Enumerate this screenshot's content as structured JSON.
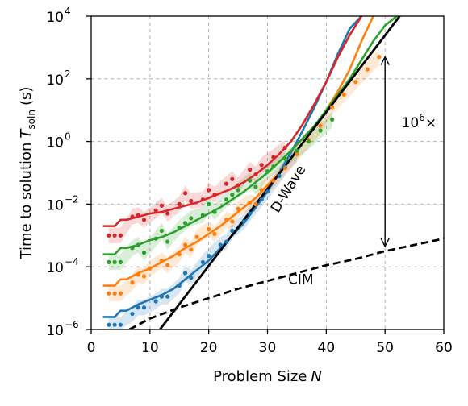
{
  "chart_data": {
    "type": "line",
    "xlabel": "Problem Size",
    "xlabel_var": "N",
    "ylabel": "Time to solution",
    "ylabel_var": "T",
    "ylabel_sub": "soln",
    "ylabel_unit": "(s)",
    "xlim": [
      0,
      60
    ],
    "ylim_log10": [
      -6,
      4
    ],
    "y_scale": "log",
    "grid": true,
    "x_ticks": [
      0,
      10,
      20,
      30,
      40,
      50,
      60
    ],
    "x_tick_labels": [
      "0",
      "10",
      "20",
      "30",
      "40",
      "50",
      "60"
    ],
    "y_tick_exponents": [
      -6,
      -4,
      -2,
      0,
      2,
      4
    ],
    "y_tick_labels": [
      "10",
      "10",
      "10",
      "10",
      "10",
      "10"
    ],
    "y_tick_superscripts": [
      "−6",
      "−4",
      "−2",
      "0",
      "2",
      "4"
    ],
    "annotations": {
      "dwave": "D-Wave",
      "cim": "CIM",
      "factor_base": "10",
      "factor_exp": "6",
      "factor_suffix": "×"
    },
    "series": [
      {
        "color": "#1f77b4",
        "kind": "model",
        "x": [
          2,
          4,
          5,
          6,
          8,
          10,
          12,
          14,
          16,
          18,
          20,
          22,
          24,
          26,
          28,
          30,
          32,
          34,
          36,
          38,
          40,
          42,
          44,
          46
        ],
        "log10_y": [
          -5.6,
          -5.6,
          -5.4,
          -5.4,
          -5.2,
          -5.05,
          -4.9,
          -4.7,
          -4.4,
          -4.1,
          -3.8,
          -3.4,
          -3.0,
          -2.6,
          -2.1,
          -1.6,
          -1.0,
          -0.35,
          0.35,
          1.1,
          1.9,
          2.8,
          3.6,
          4.0
        ],
        "points_x": [
          3,
          4,
          5,
          7,
          8,
          9,
          11,
          12,
          13,
          15,
          16,
          17,
          19,
          20,
          22,
          23,
          24,
          26,
          27,
          29,
          30,
          32,
          33,
          35
        ],
        "points_log10_y": [
          -5.85,
          -5.85,
          -5.85,
          -5.5,
          -5.3,
          -5.3,
          -5.1,
          -4.95,
          -4.95,
          -4.6,
          -4.2,
          -4.35,
          -3.85,
          -3.65,
          -3.3,
          -3.2,
          -2.85,
          -2.55,
          -2.3,
          -1.85,
          -1.6,
          -1.1,
          -0.8,
          -0.4
        ]
      },
      {
        "color": "#ff7f0e",
        "kind": "model",
        "x": [
          2,
          4,
          5,
          6,
          8,
          10,
          12,
          14,
          16,
          18,
          20,
          22,
          24,
          26,
          28,
          30,
          32,
          34,
          36,
          38,
          40,
          42,
          44,
          46,
          48
        ],
        "log10_y": [
          -4.6,
          -4.6,
          -4.4,
          -4.4,
          -4.2,
          -4.05,
          -3.85,
          -3.65,
          -3.4,
          -3.2,
          -2.95,
          -2.7,
          -2.4,
          -2.1,
          -1.8,
          -1.4,
          -1.0,
          -0.55,
          -0.05,
          0.45,
          1.0,
          1.6,
          2.3,
          3.2,
          4.0
        ],
        "points_x": [
          3,
          4,
          5,
          7,
          8,
          9,
          10,
          12,
          13,
          15,
          16,
          17,
          18,
          20,
          21,
          23,
          24,
          25,
          27,
          28,
          29,
          31,
          33,
          35,
          37,
          39,
          41,
          43,
          45,
          47,
          49
        ],
        "points_log10_y": [
          -4.85,
          -4.85,
          -4.85,
          -4.5,
          -4.25,
          -4.3,
          -4.05,
          -3.8,
          -3.95,
          -3.6,
          -3.3,
          -3.45,
          -3.05,
          -2.8,
          -2.95,
          -2.5,
          -2.55,
          -2.15,
          -1.95,
          -2.0,
          -1.55,
          -1.25,
          -0.85,
          -0.4,
          0.05,
          0.5,
          1.1,
          1.5,
          1.9,
          2.3,
          2.7
        ]
      },
      {
        "color": "#2ca02c",
        "kind": "model",
        "x": [
          2,
          4,
          5,
          6,
          8,
          10,
          12,
          14,
          16,
          18,
          20,
          22,
          24,
          26,
          28,
          30,
          32,
          34,
          36,
          38,
          40,
          42,
          44,
          46,
          48,
          50,
          52
        ],
        "log10_y": [
          -3.6,
          -3.6,
          -3.4,
          -3.4,
          -3.3,
          -3.15,
          -3.05,
          -2.9,
          -2.7,
          -2.5,
          -2.3,
          -2.1,
          -1.85,
          -1.6,
          -1.3,
          -1.0,
          -0.65,
          -0.3,
          0.1,
          0.5,
          1.0,
          1.5,
          2.0,
          2.6,
          3.2,
          3.7,
          4.0
        ],
        "points_x": [
          3,
          4,
          5,
          7,
          8,
          9,
          11,
          12,
          13,
          15,
          16,
          17,
          19,
          20,
          21,
          23,
          24,
          25,
          27,
          28,
          30,
          31,
          33,
          35,
          37,
          39,
          41
        ],
        "points_log10_y": [
          -3.85,
          -3.85,
          -3.85,
          -3.4,
          -3.3,
          -3.55,
          -3.1,
          -2.85,
          -3.2,
          -2.75,
          -2.6,
          -2.45,
          -2.35,
          -2.0,
          -2.25,
          -1.85,
          -1.7,
          -1.55,
          -1.25,
          -1.45,
          -0.95,
          -0.8,
          -0.55,
          -0.3,
          0.0,
          0.35,
          0.7
        ]
      },
      {
        "color": "#d62728",
        "kind": "model",
        "x": [
          2,
          4,
          5,
          6,
          8,
          10,
          12,
          14,
          16,
          18,
          20,
          22,
          24,
          26,
          28,
          30,
          32,
          34,
          36,
          38,
          40,
          42,
          44,
          46
        ],
        "log10_y": [
          -2.7,
          -2.7,
          -2.5,
          -2.5,
          -2.4,
          -2.3,
          -2.25,
          -2.15,
          -2.05,
          -1.95,
          -1.8,
          -1.65,
          -1.5,
          -1.3,
          -1.05,
          -0.75,
          -0.4,
          0.0,
          0.55,
          1.2,
          1.9,
          2.7,
          3.4,
          4.0
        ],
        "points_x": [
          3,
          4,
          5,
          7,
          8,
          9,
          11,
          12,
          13,
          15,
          16,
          17,
          19,
          20,
          21,
          23,
          24,
          25,
          27,
          28,
          29,
          31,
          33
        ],
        "points_log10_y": [
          -3.0,
          -3.0,
          -3.0,
          -2.4,
          -2.35,
          -2.5,
          -2.2,
          -2.05,
          -2.3,
          -2.0,
          -1.65,
          -1.9,
          -1.85,
          -1.55,
          -1.7,
          -1.35,
          -1.2,
          -1.4,
          -0.9,
          -1.05,
          -0.75,
          -0.5,
          -0.2
        ]
      },
      {
        "color": "#000000",
        "kind": "solid",
        "label_ref": "dwave",
        "x": [
          11.7,
          52.5
        ],
        "log10_y": [
          -6.0,
          4.0
        ]
      },
      {
        "color": "#000000",
        "kind": "dashed",
        "label_ref": "cim",
        "x": [
          6.5,
          10,
          15,
          20,
          25,
          30,
          35,
          40,
          45,
          50,
          55,
          60
        ],
        "log10_y": [
          -6.0,
          -5.65,
          -5.3,
          -5.0,
          -4.7,
          -4.45,
          -4.2,
          -3.95,
          -3.75,
          -3.5,
          -3.3,
          -3.1
        ]
      }
    ]
  }
}
